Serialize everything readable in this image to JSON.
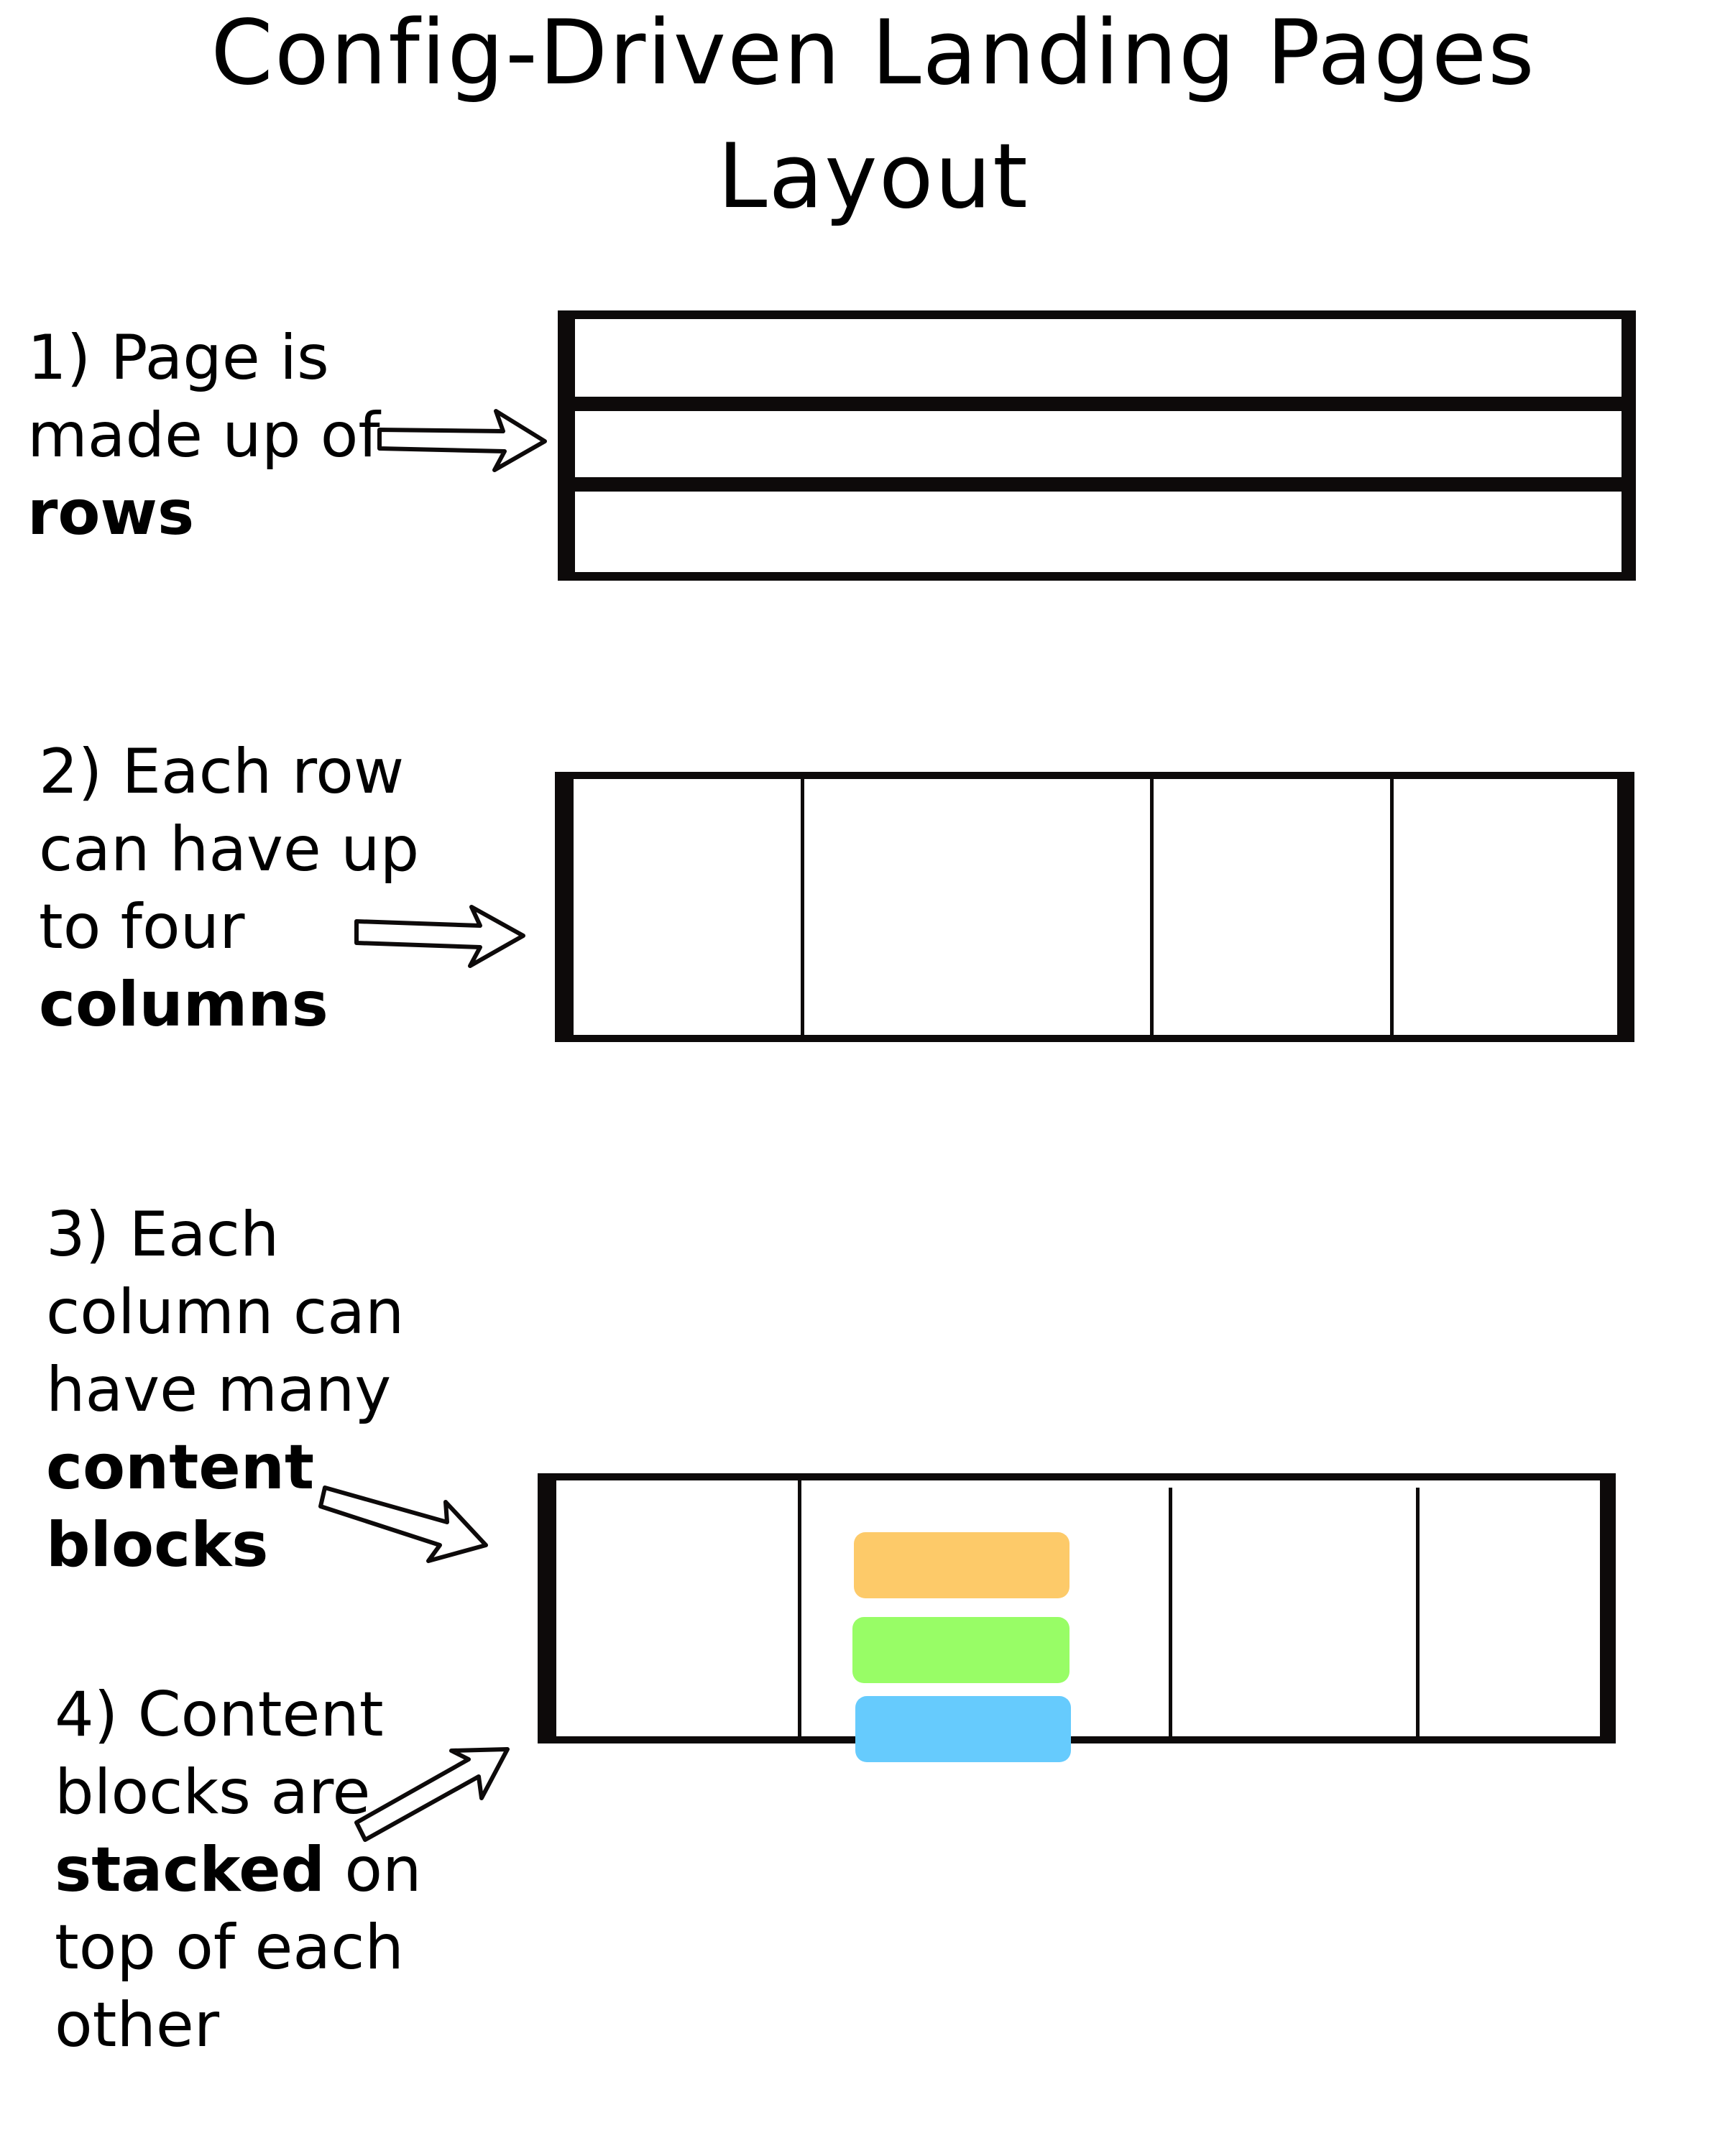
{
  "title": "Config-Driven Landing Pages",
  "subtitle": "Layout",
  "steps": [
    {
      "lines": [
        "1) Page is",
        "made up of"
      ],
      "bold": "rows"
    },
    {
      "lines": [
        "2) Each row",
        "can have up",
        "to four"
      ],
      "bold": "columns"
    },
    {
      "lines": [
        "3) Each",
        "column can",
        "have many"
      ],
      "bold_lines": [
        "content",
        "blocks"
      ]
    },
    {
      "lines": [
        "4) Content",
        "blocks are"
      ],
      "bold": "stacked",
      "after_bold": " on",
      "tail": [
        "top of each",
        "other"
      ]
    }
  ],
  "colors": {
    "ink": "#0d0a0a",
    "block_orange": "#fdca69",
    "block_green": "#98fd66",
    "block_blue": "#66cbfd"
  }
}
